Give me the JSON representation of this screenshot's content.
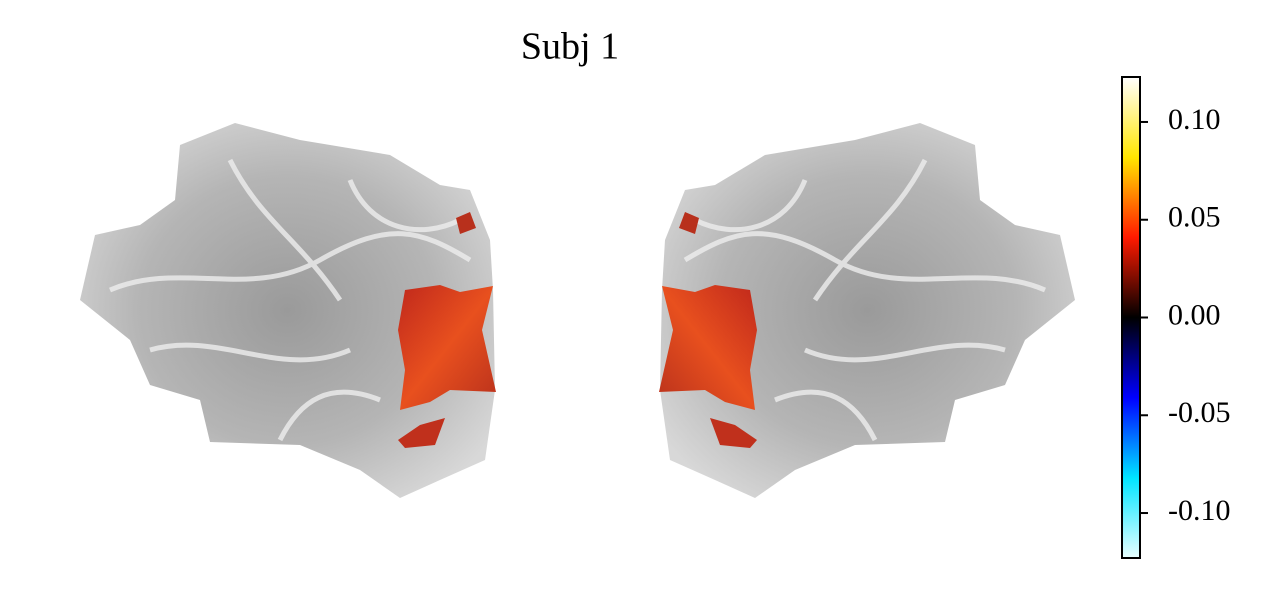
{
  "chart_data": {
    "type": "image",
    "title": "Subj 1",
    "colorbar": {
      "lim": [
        -0.123,
        0.123
      ],
      "ticks": [
        {
          "value": 0.1,
          "label": "0.10"
        },
        {
          "value": 0.05,
          "label": "0.05"
        },
        {
          "value": 0,
          "label": "0.00"
        },
        {
          "value": -0.05,
          "label": "-0.05"
        },
        {
          "value": -0.1,
          "label": "-0.10"
        }
      ],
      "colors": [
        "#e8ffff",
        "#00e5ff",
        "#0000ff",
        "#000000",
        "#ff1a00",
        "#ffe600",
        "#ffffff"
      ]
    }
  }
}
